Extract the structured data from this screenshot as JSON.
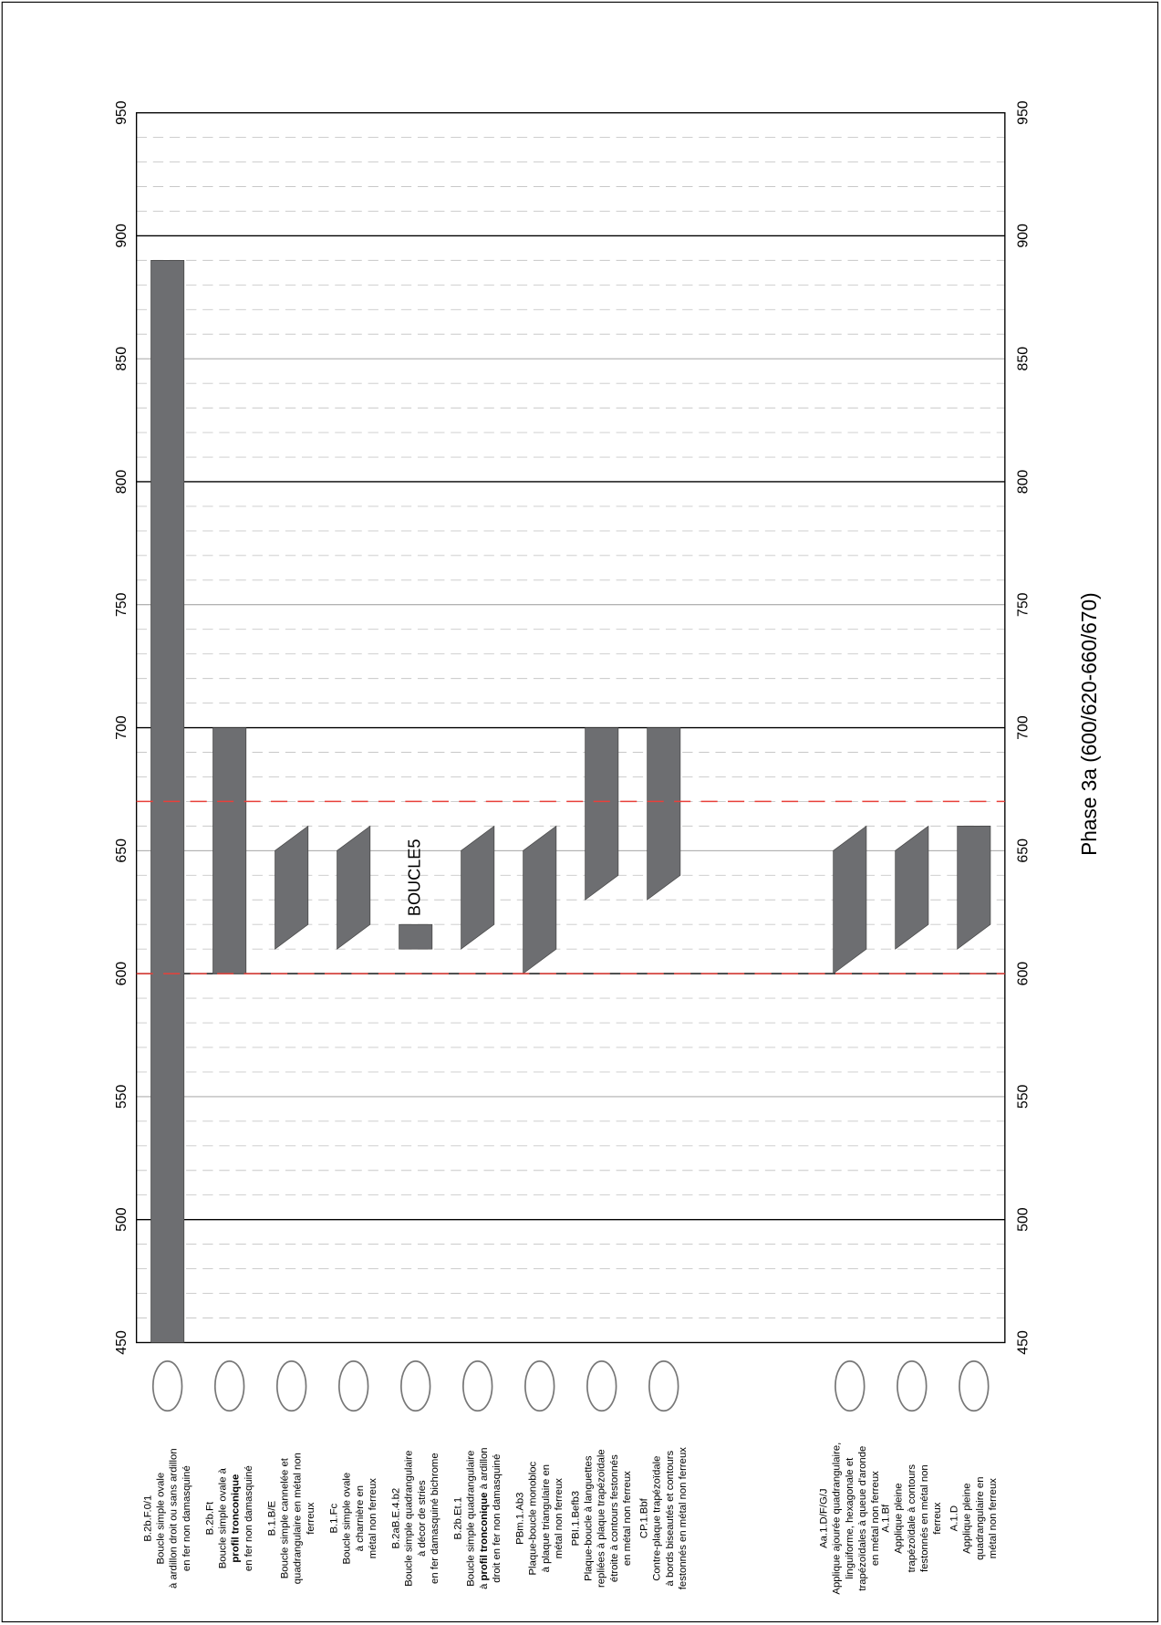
{
  "chart_data": {
    "type": "range",
    "y_label": "Phase 3a (600/620-660/670)",
    "categories": [
      [
        "B.2b.F.0/1",
        "Boucle simple ovale",
        "à ardillon droit ou sans ardillon",
        "en fer non damasquiné"
      ],
      [
        "B.2b.Ft",
        "Boucle simple ovale à",
        [
          {
            "text": "profil tronconique",
            "bold": true
          }
        ],
        "en fer non damasquiné"
      ],
      [
        "B.1.B/E",
        "Boucle simple cannelée et",
        "quadrangulaire en métal non",
        "ferreux"
      ],
      [
        "B.1.Fc",
        "Boucle simple ovale",
        "à charnière en",
        "métal non ferreux"
      ],
      [
        "B.2aB.E.4.b2",
        "Boucle simple quadrangulaire",
        "à décor de stries",
        "en fer damasquiné bichrome"
      ],
      [
        "B.2b.Et.1",
        "Boucle simple quadrangulaire",
        [
          "à ",
          {
            "text": "profil tronconique",
            "bold": true
          },
          " à ardillon"
        ],
        "droit en fer non damasquiné"
      ],
      [
        "PBm.1.Ab3",
        "Plaque-boucle monobloc",
        "à plaque triangulaire en",
        "métal non ferreux"
      ],
      [
        "PBI.1.Befb3",
        "Plaque-boucle à languettes",
        "repliées à plaque trapézoïdale",
        "étroite à contours festonnés",
        "en métal non ferreux"
      ],
      [
        "CP.1.Bbf",
        "Contre-plaque trapézoïdale",
        "à bords biseautés et contours",
        "festonnés en métal non ferreux"
      ],
      null,
      null,
      [
        "Aa.1.D/F/G/J",
        "Applique ajourée quadrangulaire,",
        "linguiforme, hexagonale et",
        "trapézoïdales à queue d'aronde",
        "en métal non ferreux"
      ],
      [
        "A.1.Bf",
        "Applique pleine",
        "trapézoïdale à contours",
        "festonnés en métal non",
        "ferreux"
      ],
      [
        "A.1.D",
        "Applique pleine",
        "quadrangulaire en",
        "métal non ferreux"
      ]
    ],
    "values": [
      [
        450,
        890,
        450,
        890
      ],
      [
        600,
        700,
        600,
        700
      ],
      [
        610,
        650,
        620,
        660
      ],
      [
        610,
        650,
        620,
        660
      ],
      [
        610,
        620,
        610,
        620
      ],
      [
        610,
        650,
        620,
        660
      ],
      [
        600,
        650,
        610,
        660
      ],
      [
        630,
        700,
        640,
        700
      ],
      [
        630,
        700,
        640,
        700
      ],
      null,
      null,
      [
        600,
        650,
        610,
        660
      ],
      [
        610,
        650,
        620,
        660
      ],
      [
        610,
        660,
        620,
        660
      ]
    ],
    "bar_labels": [
      null,
      null,
      null,
      null,
      "BOUCLE5",
      null,
      null,
      null,
      null,
      null,
      null,
      null,
      null,
      null
    ],
    "color": "#6d6e71",
    "ylim": [
      450,
      950
    ],
    "yticks": [
      450,
      500,
      550,
      600,
      650,
      700,
      750,
      800,
      850,
      900,
      950
    ],
    "minor_yticks": [
      460,
      470,
      480,
      490,
      510,
      520,
      530,
      540,
      560,
      570,
      580,
      590,
      610,
      620,
      630,
      640,
      660,
      670,
      680,
      690,
      710,
      720,
      730,
      740,
      760,
      770,
      780,
      790,
      810,
      820,
      830,
      840,
      860,
      870,
      880,
      890,
      910,
      920,
      930,
      940
    ],
    "reference_lines": [
      600,
      670
    ],
    "reference_color": "#e8403a",
    "grid": true
  }
}
